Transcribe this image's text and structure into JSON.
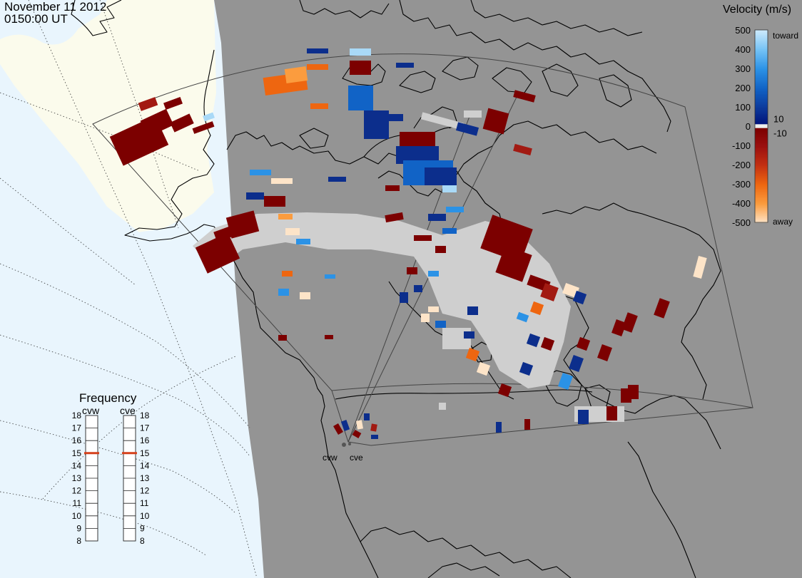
{
  "header": {
    "date": "November 11 2012",
    "time": "0150:00 UT"
  },
  "colors": {
    "ocean": "#e9f5fd",
    "land_night": "#949494",
    "land_day": "#fbfbec",
    "ground_scatter": "#cfcfcf",
    "coastline": "#000000",
    "freq_marker": "#d5401b"
  },
  "velocity_scale": {
    "title": "Velocity (m/s)",
    "ticks": [
      "500",
      "400",
      "300",
      "200",
      "100",
      "0",
      "-100",
      "-200",
      "-300",
      "-400",
      "-500"
    ],
    "inner_ticks": [
      "10",
      "-10"
    ],
    "toward_label": "toward",
    "away_label": "away",
    "stops": [
      {
        "value": 500,
        "color": "#cbe9fb"
      },
      {
        "value": 400,
        "color": "#74c2f5"
      },
      {
        "value": 300,
        "color": "#2b92e6"
      },
      {
        "value": 200,
        "color": "#1163c6"
      },
      {
        "value": 100,
        "color": "#0c3a9c"
      },
      {
        "value": 10,
        "color": "#00127a"
      },
      {
        "value": -10,
        "color": "#7c0000"
      },
      {
        "value": -100,
        "color": "#9b0f0f"
      },
      {
        "value": -200,
        "color": "#c33012"
      },
      {
        "value": -300,
        "color": "#ee6610"
      },
      {
        "value": -400,
        "color": "#fb9c3e"
      },
      {
        "value": -500,
        "color": "#fde4c8"
      }
    ]
  },
  "frequency_panel": {
    "title": "Frequency",
    "radars": [
      {
        "code": "cvw",
        "freq_mhz": 15
      },
      {
        "code": "cve",
        "freq_mhz": 15
      }
    ],
    "ticks": [
      "18",
      "17",
      "16",
      "15",
      "14",
      "13",
      "12",
      "11",
      "10",
      "9",
      "8"
    ]
  },
  "radar_sites": [
    {
      "code": "cvw"
    },
    {
      "code": "cve"
    }
  ]
}
